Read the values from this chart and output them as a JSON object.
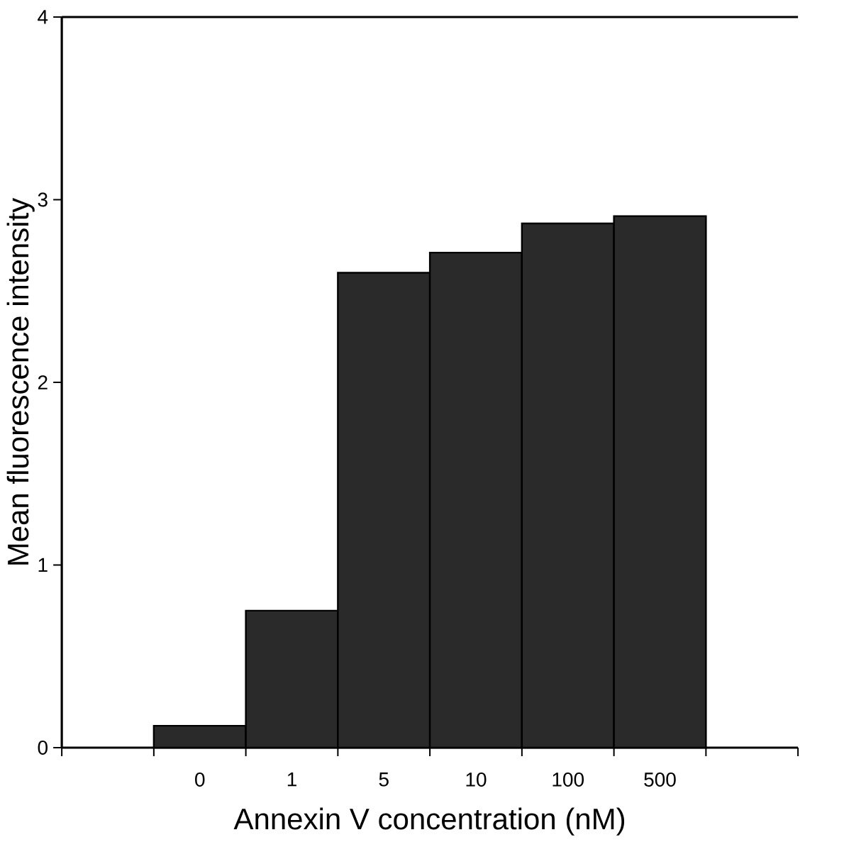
{
  "chart_data": {
    "type": "bar",
    "xlabel": "Annexin V concentration  (nM)",
    "ylabel": "Mean fluorescence intensity",
    "categories": [
      null,
      "0",
      "1",
      "5",
      "10",
      "100",
      "500",
      null
    ],
    "values": [
      null,
      0.12,
      0.75,
      2.6,
      2.71,
      2.87,
      2.91,
      null
    ],
    "color": "#2a2a2a",
    "ylim": [
      0,
      4
    ],
    "yticks": [
      0,
      1,
      2,
      3,
      4
    ]
  }
}
